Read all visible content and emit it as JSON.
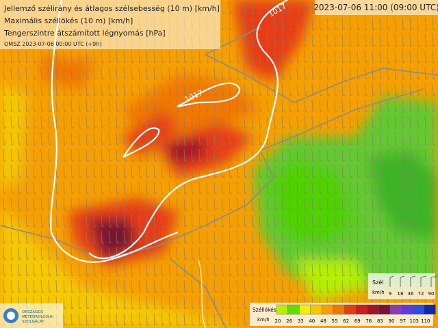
{
  "header": {
    "lines": [
      "Jellemző szélirány és átlagos szélsebesség (10 m) [km/h]",
      "Maximális széllökés (10 m) [km/h]",
      "Tengerszintre átszámított légnyomás [hPa]"
    ],
    "run": "OMSZ 2023-07-06 00:00 UTC (+9h)"
  },
  "valid_time": "2023-07-06 11:00 (09:00 UTC)",
  "isobar_labels": [
    "1017",
    "1017"
  ],
  "logo": [
    "ORSZÁGOS",
    "METEOROLÓGIAI",
    "SZOLGÁLAT"
  ],
  "wind_legend": {
    "title": "Szél",
    "unit": "km/h",
    "ticks": [
      9,
      18,
      36,
      72,
      90
    ]
  },
  "gust_legend": {
    "title": "Széllökés",
    "unit": "km/h",
    "ticks": [
      20,
      26,
      33,
      40,
      48,
      55,
      62,
      69,
      76,
      83,
      90,
      97,
      103,
      110
    ],
    "colors": [
      "#b4f000",
      "#64dc00",
      "#f0f000",
      "#f5c800",
      "#f5a000",
      "#f07800",
      "#e63c14",
      "#c81e1e",
      "#a01428",
      "#781432",
      "#8c3cb4",
      "#5a3cdc",
      "#2850dc",
      "#1428a0"
    ]
  }
}
